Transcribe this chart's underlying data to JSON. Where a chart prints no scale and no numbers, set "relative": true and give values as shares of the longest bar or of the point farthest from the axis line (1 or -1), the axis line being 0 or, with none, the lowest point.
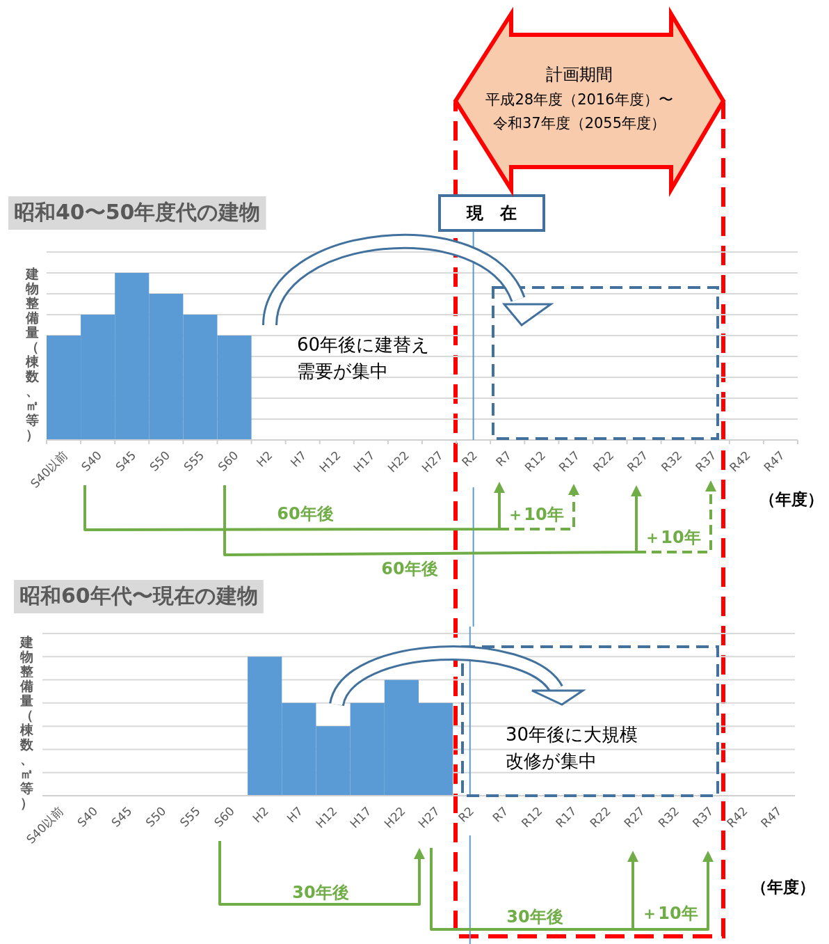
{
  "chart_data": [
    {
      "type": "bar",
      "relative": true,
      "grid": true,
      "title": "昭和40〜50年度代の建物",
      "ylabel": "建物整備量（棟数、㎡等）",
      "xlabel": "（年度）",
      "categories": [
        "S40以前",
        "S40",
        "S45",
        "S50",
        "S55",
        "S60",
        "H2",
        "H7",
        "H12",
        "H17",
        "H22",
        "H27",
        "R2",
        "R7",
        "R12",
        "R17",
        "R22",
        "R27",
        "R32",
        "R37",
        "R42",
        "R47"
      ],
      "series": [
        {
          "color": "#5b9bd5",
          "values": [
            0.625,
            0.75,
            1,
            0.875,
            0.75,
            0.625,
            null,
            null,
            null,
            null,
            null,
            null,
            null,
            null,
            null,
            null,
            null,
            null,
            null,
            null,
            null,
            null
          ]
        }
      ],
      "ref_lines": [
        {
          "axis": "x",
          "value": "R2",
          "label": "現　在",
          "color": "#5b9bd5"
        }
      ],
      "annotations": [
        "計画期間",
        "平成28年度（2016年度）〜令和37年度（2055年度）",
        "60年後に建替え需要が集中",
        "60年後",
        "＋10年",
        "＋10年",
        "60年後"
      ]
    },
    {
      "type": "bar",
      "relative": true,
      "grid": true,
      "title": "昭和60年代〜現在の建物",
      "ylabel": "建物整備量（棟数、㎡等）",
      "xlabel": "（年度）",
      "categories": [
        "S40以前",
        "S40",
        "S45",
        "S50",
        "S55",
        "S60",
        "H2",
        "H7",
        "H12",
        "H17",
        "H22",
        "H27",
        "R2",
        "R7",
        "R12",
        "R17",
        "R22",
        "R27",
        "R32",
        "R37",
        "R42",
        "R47"
      ],
      "series": [
        {
          "color": "#5b9bd5",
          "values": [
            null,
            null,
            null,
            null,
            null,
            null,
            1,
            0.667,
            0.5,
            0.667,
            0.833,
            0.667,
            null,
            null,
            null,
            null,
            null,
            null,
            null,
            null,
            null,
            null
          ]
        }
      ],
      "ref_lines": [
        {
          "axis": "x",
          "value": "R2",
          "color": "#5b9bd5"
        }
      ],
      "annotations": [
        "30年後に大規模改修が集中",
        "30年後",
        "30年後",
        "＋10年"
      ]
    }
  ]
}
